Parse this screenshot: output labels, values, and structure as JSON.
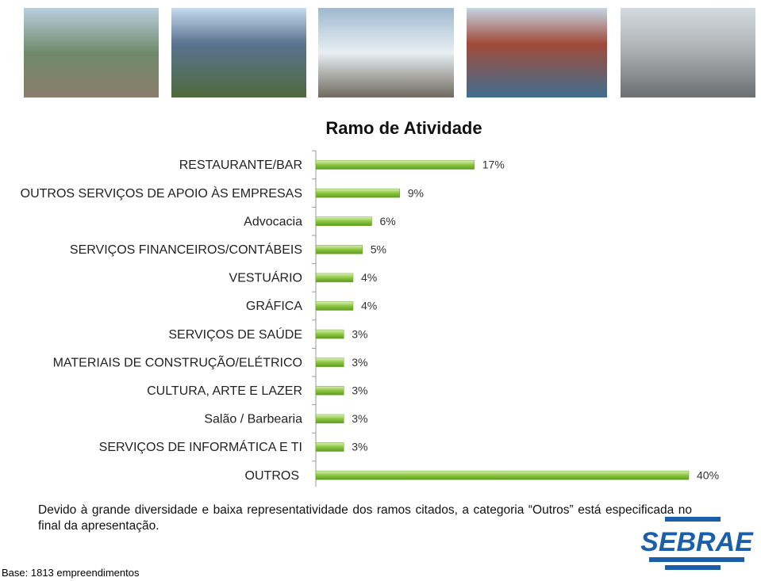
{
  "chart_data": {
    "type": "bar",
    "orientation": "horizontal",
    "title": "Ramo de Atividade",
    "categories": [
      "RESTAURANTE/BAR",
      "OUTROS SERVIÇOS DE APOIO ÀS EMPRESAS",
      "Advocacia",
      "SERVIÇOS FINANCEIROS/CONTÁBEIS",
      "VESTUÁRIO",
      "GRÁFICA",
      "SERVIÇOS DE SAÚDE",
      "MATERIAIS DE CONSTRUÇÃO/ELÉTRICO",
      "CULTURA, ARTE E LAZER",
      "Salão / Barbearia",
      "SERVIÇOS DE INFORMÁTICA E TI",
      "OUTROS"
    ],
    "values": [
      17,
      9,
      6,
      5,
      4,
      4,
      3,
      3,
      3,
      3,
      3,
      40
    ],
    "value_labels": [
      "17%",
      "9%",
      "6%",
      "5%",
      "4%",
      "4%",
      "3%",
      "3%",
      "3%",
      "3%",
      "3%",
      "40%"
    ],
    "color": "#8cc63f"
  },
  "note": "Devido à grande diversidade e baixa representatividade dos ramos citados, a categoria “Outros” está especificada no final da apresentação.",
  "base": "Base: 1813 empreendimentos",
  "logo": "SEBRAE"
}
